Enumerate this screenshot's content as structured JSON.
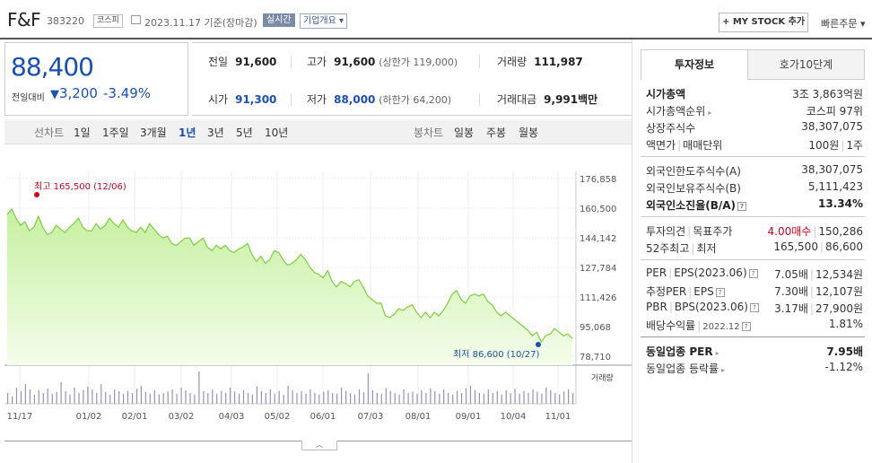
{
  "header": {
    "name": "F&F",
    "code": "383220",
    "market": "코스피",
    "date": "2023.11.17 기준(장마감)",
    "realtime": "실시간",
    "corp_info": "기업개요 ▾",
    "mystock": "+ MY STOCK 추가",
    "quick_order": "빠른주문 ▾"
  },
  "price": {
    "now": "88,400",
    "prev_label": "전일대비",
    "arrow": "▼",
    "change": "3,200",
    "pct": "-3.49%"
  },
  "stats": {
    "prev_close_label": "전일",
    "prev_close": "91,600",
    "high_label": "고가",
    "high": "91,600",
    "upper_limit": "(상한가 119,000)",
    "volume_label": "거래량",
    "volume": "111,987",
    "open_label": "시가",
    "open": "91,300",
    "low_label": "저가",
    "low": "88,000",
    "lower_limit": "(하한가 64,200)",
    "amount_label": "거래대금",
    "amount": "9,991",
    "amount_unit": "백만"
  },
  "tabs": {
    "line_label": "선차트",
    "line_tabs": [
      "1일",
      "1주일",
      "3개월",
      "1년",
      "3년",
      "5년",
      "10년"
    ],
    "active_line": "1년",
    "candle_label": "봉차트",
    "candle_tabs": [
      "일봉",
      "주봉",
      "월봉"
    ]
  },
  "chart_data": {
    "type": "area",
    "y_ticks": [
      "176,858",
      "160,500",
      "144,142",
      "127,784",
      "111,426",
      "95,068",
      "78,710"
    ],
    "ylim": [
      78710,
      176858
    ],
    "x_ticks": [
      "11/17",
      "01/02",
      "02/01",
      "03/02",
      "04/03",
      "05/02",
      "06/01",
      "07/03",
      "08/01",
      "09/01",
      "10/04",
      "11/01"
    ],
    "high_annotation": "최고 165,500 (12/06)",
    "low_annotation": "최저 86,600 (10/27)",
    "volume_label": "거래량",
    "series": [
      {
        "values": [
          157000,
          160000,
          155000,
          151000,
          153000,
          148000,
          150000,
          156000,
          150000,
          146000,
          147000,
          151000,
          149000,
          147000,
          150000,
          152000,
          155000,
          150000,
          148000,
          148000,
          152000,
          149000,
          151000,
          155000,
          152000,
          150000,
          154000,
          150000,
          148000,
          147000,
          150000,
          147000,
          152000,
          149000,
          146000,
          144000,
          145000,
          141000,
          140000,
          142000,
          144000,
          144000,
          140000,
          142000,
          144000,
          139000,
          137000,
          140000,
          138000,
          140000,
          137000,
          136000,
          138000,
          139000,
          141000,
          135000,
          131000,
          134000,
          130000,
          132000,
          137000,
          136000,
          132000,
          129000,
          130000,
          132000,
          135000,
          132000,
          128000,
          125000,
          124000,
          122000,
          126000,
          120000,
          117000,
          120000,
          119000,
          117000,
          120000,
          121000,
          117000,
          112000,
          110000,
          108000,
          108000,
          101000,
          100000,
          102000,
          105000,
          104000,
          106000,
          107000,
          103000,
          100000,
          103000,
          100000,
          103000,
          101000,
          104000,
          108000,
          113000,
          115000,
          110000,
          108000,
          112000,
          113000,
          112000,
          113000,
          109000,
          107000,
          103000,
          101000,
          103000,
          101000,
          99000,
          97000,
          95000,
          93000,
          90000,
          92000,
          86600,
          90000,
          91000,
          94000,
          92000,
          90000,
          91000,
          88400
        ]
      }
    ],
    "volume": [
      30,
      20,
      45,
      35,
      55,
      40,
      25,
      38,
      30,
      42,
      28,
      33,
      60,
      35,
      26,
      45,
      30,
      38,
      48,
      40,
      30,
      55,
      33,
      25,
      40,
      35,
      28,
      36,
      30,
      42,
      50,
      33,
      28,
      38,
      26,
      30,
      34,
      40,
      28,
      45,
      38,
      30,
      26,
      90,
      35,
      30,
      40,
      28,
      36,
      30,
      45,
      34,
      28,
      38,
      30,
      26,
      48,
      35,
      30,
      40,
      28,
      36,
      25,
      50,
      38,
      30,
      35,
      28,
      40,
      30,
      26,
      34,
      38,
      30,
      28,
      45,
      36,
      30,
      26,
      40,
      32,
      85,
      38,
      30,
      28,
      44,
      36,
      30,
      26,
      40,
      30,
      34,
      28,
      38,
      30,
      42,
      35,
      28,
      40,
      30,
      26,
      36,
      30,
      44,
      50,
      38,
      30,
      28,
      40,
      30,
      35,
      26,
      38,
      30,
      42,
      28,
      36,
      30,
      40,
      34,
      28,
      45,
      38,
      30,
      26,
      34,
      40,
      30
    ]
  },
  "invest": {
    "tab_active": "투자정보",
    "tab_other": "호가10단계",
    "market_cap_label": "시가총액",
    "market_cap": "3조 3,863억원",
    "cap_rank_label": "시가총액순위",
    "cap_rank": "코스피 97위",
    "shares_label": "상장주식수",
    "shares": "38,307,075",
    "par_label": "액면가",
    "unit_label": "매매단위",
    "par": "100원",
    "unit": "1주",
    "foreign_limit_label": "외국인한도주식수(A)",
    "foreign_limit": "38,307,075",
    "foreign_hold_label": "외국인보유주식수(B)",
    "foreign_hold": "5,111,423",
    "foreign_ratio_label": "외국인소진율(B/A)",
    "foreign_ratio": "13.34%",
    "opinion_label": "투자의견",
    "target_label": "목표주가",
    "opinion": "4.00매수",
    "target": "150,286",
    "w52_label": "52주최고",
    "w52_low_label": "최저",
    "w52_high": "165,500",
    "w52_low": "86,600",
    "per_label": "PER",
    "eps_label": "EPS(2023.06)",
    "per": "7.05배",
    "eps": "12,534원",
    "est_per_label": "추정PER",
    "est_eps_label": "EPS",
    "est_per": "7.30배",
    "est_eps": "12,107원",
    "pbr_label": "PBR",
    "bps_label": "BPS(2023.06)",
    "pbr": "3.17배",
    "bps": "27,900원",
    "div_label": "배당수익률",
    "div_date": "2022.12",
    "div": "1.81%",
    "ind_per_label": "동일업종 PER",
    "ind_per": "7.95배",
    "ind_chg_label": "동일업종 등락률",
    "ind_chg": "-1.12%"
  }
}
